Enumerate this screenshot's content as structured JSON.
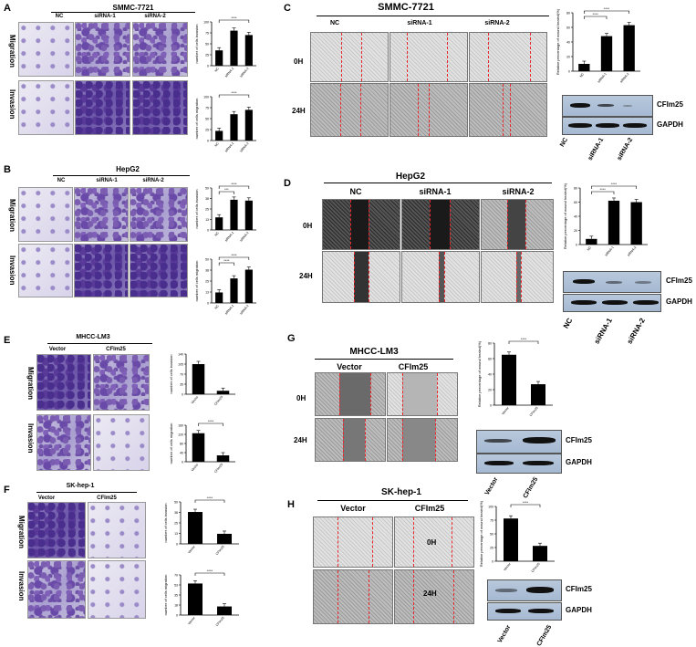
{
  "panels": {
    "A": {
      "letter": "A",
      "title": "SMMC-7721",
      "groups": [
        "NC",
        "siRNA-1",
        "siRNA-2"
      ],
      "rows": [
        "Migration",
        "Invasion"
      ]
    },
    "B": {
      "letter": "B",
      "title": "HepG2",
      "groups": [
        "NC",
        "siRNA-1",
        "siRNA-2"
      ],
      "rows": [
        "Migration",
        "Invasion"
      ]
    },
    "C": {
      "letter": "C",
      "title": "SMMC-7721",
      "groups": [
        "NC",
        "siRNA-1",
        "siRNA-2"
      ],
      "times": [
        "0H",
        "24H"
      ],
      "blot": [
        "CFIm25",
        "GAPDH"
      ],
      "blot_lanes": [
        "NC",
        "siRNA-1",
        "siRNA-2"
      ]
    },
    "D": {
      "letter": "D",
      "title": "HepG2",
      "groups": [
        "NC",
        "siRNA-1",
        "siRNA-2"
      ],
      "times": [
        "0H",
        "24H"
      ],
      "blot": [
        "CFIm25",
        "GAPDH"
      ],
      "blot_lanes": [
        "NC",
        "siRNA-1",
        "siRNA-2"
      ]
    },
    "E": {
      "letter": "E",
      "title": "MHCC-LM3",
      "groups": [
        "Vector",
        "CFIm25"
      ],
      "rows": [
        "Migration",
        "Invasion"
      ]
    },
    "F": {
      "letter": "F",
      "title": "SK-hep-1",
      "groups": [
        "Vector",
        "CFIm25"
      ],
      "rows": [
        "Migration",
        "Invasion"
      ]
    },
    "G": {
      "letter": "G",
      "title": "MHCC-LM3",
      "groups": [
        "Vector",
        "CFIm25"
      ],
      "times": [
        "0H",
        "24H"
      ],
      "blot": [
        "CFIm25",
        "GAPDH"
      ],
      "blot_lanes": [
        "Vector",
        "CFIm25"
      ]
    },
    "H": {
      "letter": "H",
      "title": "SK-hep-1",
      "groups": [
        "Vector",
        "CFIm25"
      ],
      "times": [
        "0H",
        "24H"
      ],
      "blot": [
        "CFIm25",
        "GAPDH"
      ],
      "blot_lanes": [
        "Vector",
        "CFIm25"
      ]
    }
  },
  "chart_data": [
    {
      "id": "A1",
      "type": "bar",
      "categories": [
        "NC",
        "siRNA-1",
        "siRNA-2"
      ],
      "values": [
        35,
        80,
        70
      ],
      "ylabel": "number of cells invasion",
      "ylim": [
        0,
        100
      ],
      "sig": "****"
    },
    {
      "id": "A2",
      "type": "bar",
      "categories": [
        "NC",
        "siRNA-1",
        "siRNA-2"
      ],
      "values": [
        22,
        60,
        70
      ],
      "ylabel": "number of cells migration",
      "ylim": [
        0,
        100
      ],
      "sig": "****"
    },
    {
      "id": "B1",
      "type": "bar",
      "categories": [
        "NC",
        "siRNA-1",
        "siRNA-2"
      ],
      "values": [
        15,
        36,
        35
      ],
      "ylabel": "number of cells invasion",
      "ylim": [
        0,
        50
      ],
      "sig": "****",
      "sig2": "***"
    },
    {
      "id": "B2",
      "type": "bar",
      "categories": [
        "NC",
        "siRNA-1",
        "siRNA-2"
      ],
      "values": [
        12,
        28,
        38
      ],
      "ylabel": "number of cells migration",
      "ylim": [
        0,
        50
      ],
      "sig": "****",
      "sig2": "****"
    },
    {
      "id": "C1",
      "type": "bar",
      "categories": [
        "NC",
        "siRNA-1",
        "siRNA-2"
      ],
      "values": [
        10,
        48,
        63
      ],
      "ylabel": "Relative percentage of wound healed(%)",
      "ylim": [
        0,
        80
      ],
      "sig": "****",
      "sig2": "****"
    },
    {
      "id": "D1",
      "type": "bar",
      "categories": [
        "NC",
        "siRNA-1",
        "siRNA-2"
      ],
      "values": [
        8,
        62,
        60
      ],
      "ylabel": "Relative percentage of wound healed(%)",
      "ylim": [
        0,
        80
      ],
      "sig": "****",
      "sig2": "****"
    },
    {
      "id": "E1",
      "type": "bar",
      "categories": [
        "Vector",
        "CFIm25"
      ],
      "values": [
        105,
        12
      ],
      "ylabel": "number of cells invasion",
      "ylim": [
        0,
        140
      ],
      "sig": ""
    },
    {
      "id": "E2",
      "type": "bar",
      "categories": [
        "Vector",
        "CFIm25"
      ],
      "values": [
        125,
        28
      ],
      "ylabel": "number of cells migration",
      "ylim": [
        0,
        160
      ],
      "sig": "****"
    },
    {
      "id": "F1",
      "type": "bar",
      "categories": [
        "Vector",
        "CFIm25"
      ],
      "values": [
        38,
        12
      ],
      "ylabel": "number of cells invasion",
      "ylim": [
        0,
        50
      ],
      "sig": "****"
    },
    {
      "id": "F2",
      "type": "bar",
      "categories": [
        "Vector",
        "CFIm25"
      ],
      "values": [
        55,
        15
      ],
      "ylabel": "number of cells migration",
      "ylim": [
        0,
        70
      ],
      "sig": "****"
    },
    {
      "id": "G1",
      "type": "bar",
      "categories": [
        "Vector",
        "CFIm25"
      ],
      "values": [
        65,
        27
      ],
      "ylabel": "Relative percentage of wound healed(%)",
      "ylim": [
        0,
        80
      ],
      "sig": "****"
    },
    {
      "id": "H1",
      "type": "bar",
      "categories": [
        "Vector",
        "CFIm25"
      ],
      "values": [
        78,
        28
      ],
      "ylabel": "Relative percentage of wound healed(%)",
      "ylim": [
        0,
        100
      ],
      "sig": "****"
    }
  ]
}
